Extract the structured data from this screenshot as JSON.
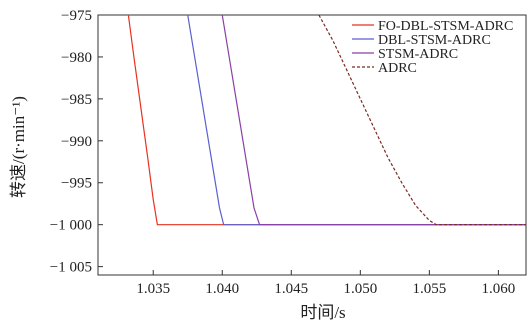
{
  "chart_data": {
    "type": "line",
    "xlabel": "时间/s",
    "ylabel": "转速/(r·min⁻¹)",
    "xlim": [
      1.031,
      1.062
    ],
    "ylim": [
      -1006,
      -975
    ],
    "x_ticks": [
      1.035,
      1.04,
      1.045,
      1.05,
      1.055,
      1.06
    ],
    "x_tick_labels": [
      "1.035",
      "1.040",
      "1.045",
      "1.050",
      "1.055",
      "1.060"
    ],
    "y_ticks": [
      -975,
      -980,
      -985,
      -990,
      -995,
      -1000,
      -1005
    ],
    "y_tick_labels": [
      "−975",
      "−980",
      "−985",
      "−990",
      "−995",
      "−1 000",
      "−1 005"
    ],
    "legend_position": "top-right",
    "series": [
      {
        "name": "FO-DBL-STSM-ADRC",
        "color": "#e8321f",
        "dash": "solid",
        "points": [
          [
            1.0332,
            -975
          ],
          [
            1.0336,
            -980
          ],
          [
            1.0341,
            -986
          ],
          [
            1.0346,
            -992
          ],
          [
            1.035,
            -997
          ],
          [
            1.0353,
            -1000
          ],
          [
            1.062,
            -1000
          ]
        ]
      },
      {
        "name": "DBL-STSM-ADRC",
        "color": "#5a5fd0",
        "dash": "solid",
        "points": [
          [
            1.0375,
            -975
          ],
          [
            1.038,
            -980
          ],
          [
            1.0386,
            -986
          ],
          [
            1.0393,
            -993
          ],
          [
            1.0398,
            -998
          ],
          [
            1.0401,
            -1000
          ],
          [
            1.062,
            -1000
          ]
        ]
      },
      {
        "name": "STSM-ADRC",
        "color": "#8a3fa8",
        "dash": "solid",
        "points": [
          [
            1.04,
            -975
          ],
          [
            1.0405,
            -980
          ],
          [
            1.0411,
            -986
          ],
          [
            1.0418,
            -993
          ],
          [
            1.0423,
            -998
          ],
          [
            1.0427,
            -1000
          ],
          [
            1.062,
            -1000
          ]
        ]
      },
      {
        "name": "ADRC",
        "color": "#7a2a22",
        "dash": "dashed",
        "points": [
          [
            1.047,
            -975
          ],
          [
            1.048,
            -978
          ],
          [
            1.049,
            -981.5
          ],
          [
            1.05,
            -985
          ],
          [
            1.051,
            -988.5
          ],
          [
            1.052,
            -992
          ],
          [
            1.053,
            -995
          ],
          [
            1.054,
            -997.7
          ],
          [
            1.055,
            -999.5
          ],
          [
            1.0555,
            -1000
          ],
          [
            1.062,
            -1000
          ]
        ]
      }
    ]
  }
}
